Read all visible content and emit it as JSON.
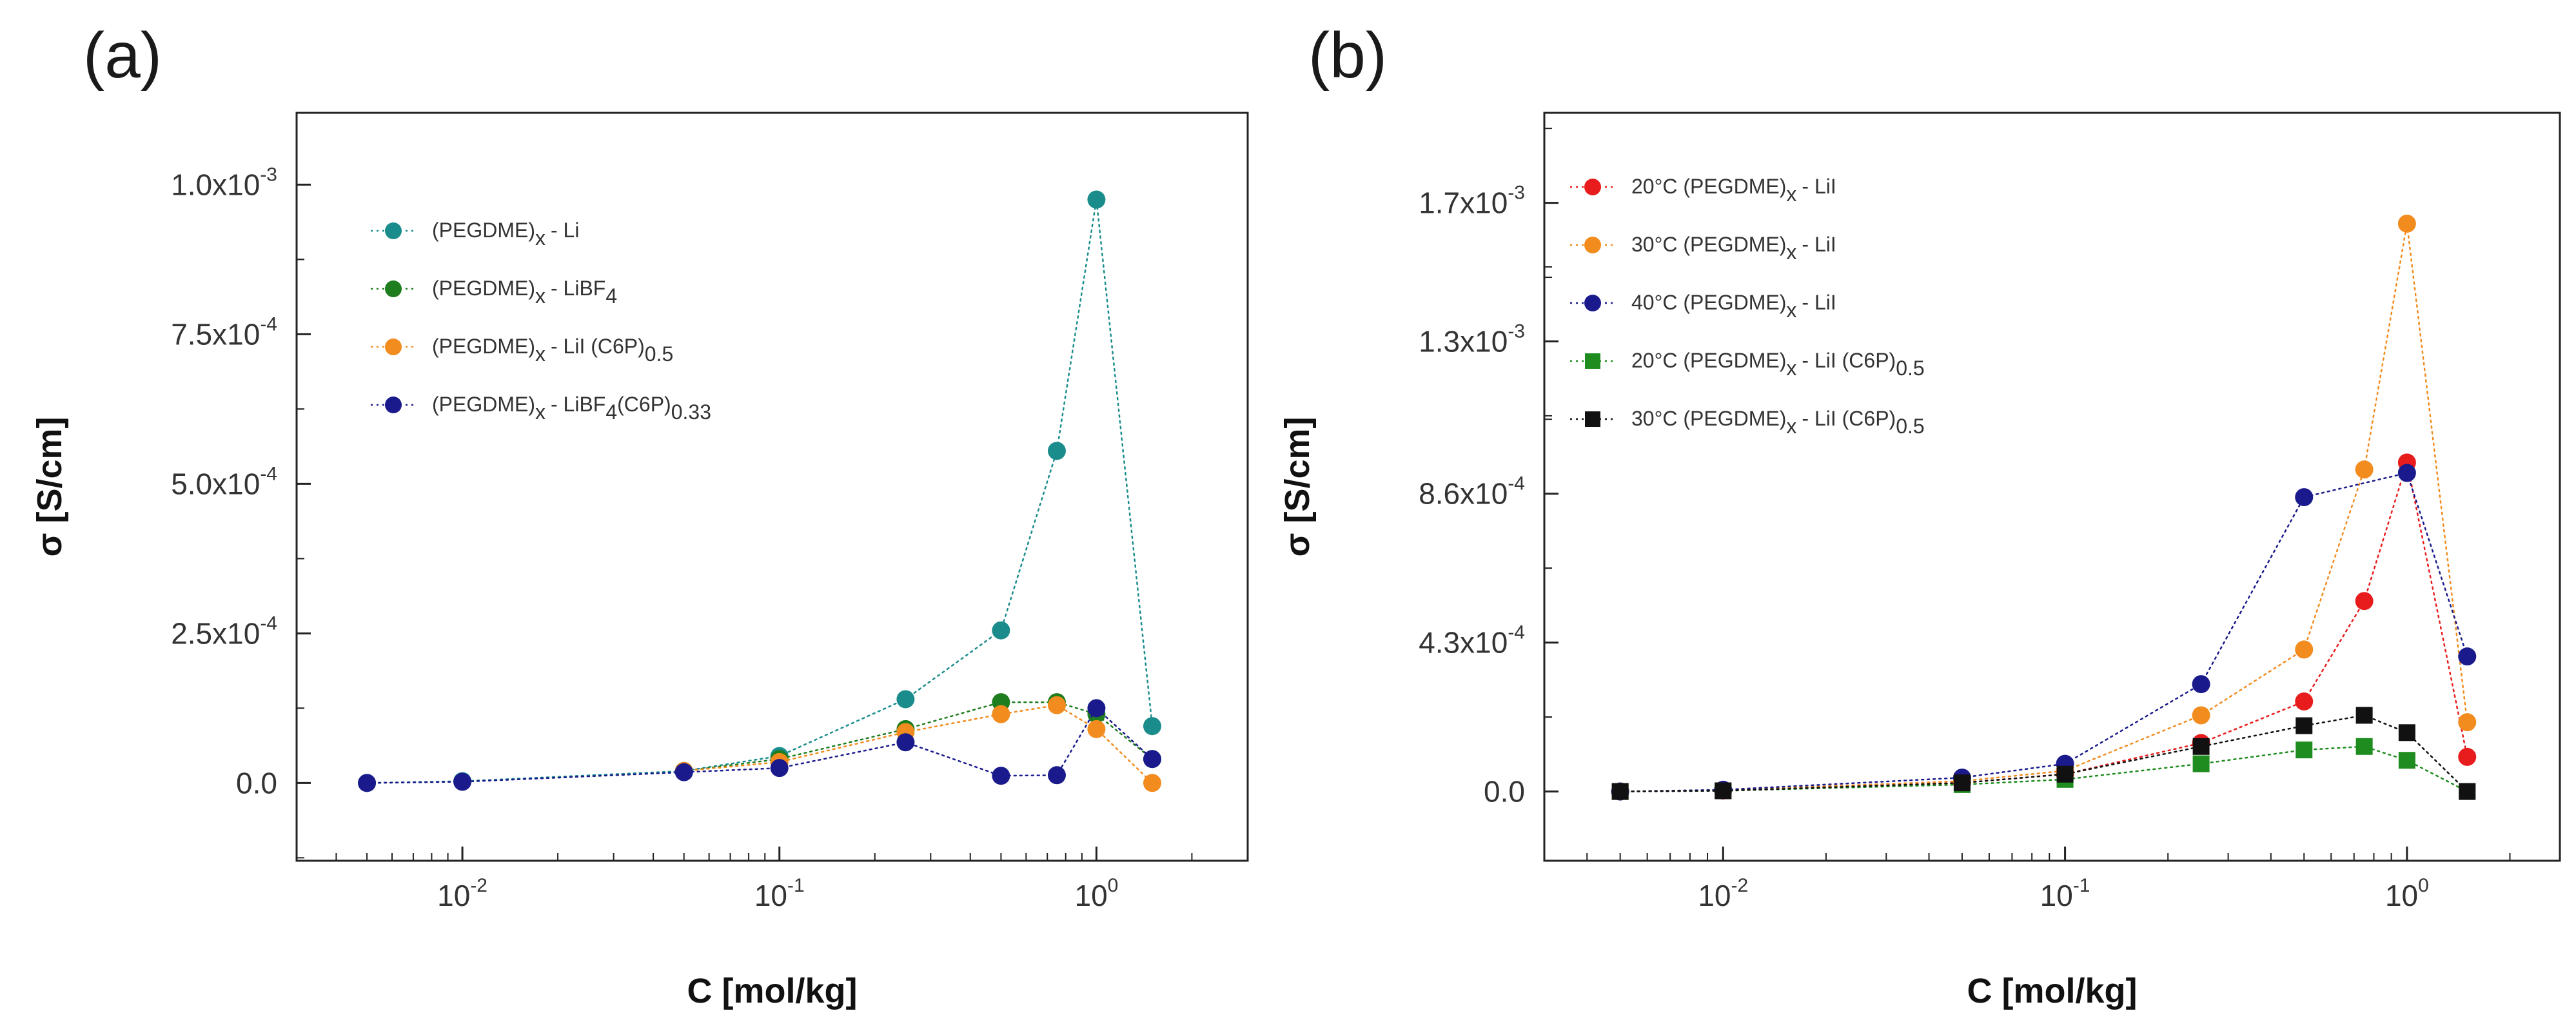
{
  "chart_data": [
    {
      "type": "scatter",
      "panel_label": "(a)",
      "xlabel": "C [mol/kg]",
      "ylabel": "σ [S/cm]",
      "xscale": "log",
      "xlim": [
        0.003,
        3.0
      ],
      "ylim": [
        -0.00013,
        0.00112
      ],
      "xticks": [
        {
          "base": "10",
          "exp": "-2",
          "value": 0.01
        },
        {
          "base": "10",
          "exp": "-1",
          "value": 0.1
        },
        {
          "base": "10",
          "exp": "0",
          "value": 1.0
        }
      ],
      "yticks": [
        {
          "label": "0.0",
          "value": 0.0
        },
        {
          "label": "2.5x10",
          "exp": "-4",
          "value": 0.00025
        },
        {
          "label": "5.0x10",
          "exp": "-4",
          "value": 0.0005
        },
        {
          "label": "7.5x10",
          "exp": "-4",
          "value": 0.00075
        },
        {
          "label": "1.0x10",
          "exp": "-3",
          "value": 0.001
        }
      ],
      "legend_position": "upper-left",
      "series": [
        {
          "name": "(PEGDME)",
          "sub": "x",
          "suffix": "- Li",
          "suffix_sub": "",
          "color": "#1a8c8c",
          "marker": "circle",
          "x": [
            0.005,
            0.01,
            0.05,
            0.1,
            0.25,
            0.5,
            0.75,
            1.0,
            1.5
          ],
          "y": [
            0.0,
            3e-06,
            2e-05,
            4.5e-05,
            0.00014,
            0.000255,
            0.000555,
            0.000975,
            9.5e-05
          ]
        },
        {
          "name": "(PEGDME)",
          "sub": "x",
          "suffix": "- LiBF",
          "suffix_sub": "4",
          "color": "#1e7d1e",
          "marker": "circle",
          "x": [
            0.05,
            0.1,
            0.25,
            0.5,
            0.75,
            1.0,
            1.5
          ],
          "y": [
            2e-05,
            4e-05,
            9e-05,
            0.000135,
            0.000135,
            0.000115,
            4e-05
          ]
        },
        {
          "name": "(PEGDME)",
          "sub": "x",
          "suffix": "- LiI (C6P)",
          "suffix_sub": "0.5",
          "color": "#f28c1e",
          "marker": "circle",
          "x": [
            0.05,
            0.1,
            0.25,
            0.5,
            0.75,
            1.0,
            1.5
          ],
          "y": [
            2e-05,
            3.5e-05,
            8.5e-05,
            0.000115,
            0.00013,
            9e-05,
            0.0
          ]
        },
        {
          "name": "(PEGDME)",
          "sub": "x",
          "suffix": "- LiBF",
          "suffix_sub": "4",
          "suffix2": "(C6P)",
          "suffix2_sub": "0.33",
          "color": "#1a1a8c",
          "marker": "circle",
          "x": [
            0.005,
            0.01,
            0.05,
            0.1,
            0.25,
            0.5,
            0.75,
            1.0,
            1.5
          ],
          "y": [
            0.0,
            2e-06,
            1.8e-05,
            2.5e-05,
            6.8e-05,
            1.2e-05,
            1.3e-05,
            0.000125,
            4e-05
          ]
        }
      ]
    },
    {
      "type": "scatter",
      "panel_label": "(b)",
      "xlabel": "C [mol/kg]",
      "ylabel": "σ [S/cm]",
      "xscale": "log",
      "xlim": [
        0.003,
        2.8
      ],
      "ylim": [
        -0.0002,
        0.00196
      ],
      "xticks": [
        {
          "base": "10",
          "exp": "-2",
          "value": 0.01
        },
        {
          "base": "10",
          "exp": "-1",
          "value": 0.1
        },
        {
          "base": "10",
          "exp": "0",
          "value": 1.0
        }
      ],
      "yticks": [
        {
          "label": "0.0",
          "value": 0.0
        },
        {
          "label": "4.3x10",
          "exp": "-4",
          "value": 0.00043
        },
        {
          "label": "8.6x10",
          "exp": "-4",
          "value": 0.00086
        },
        {
          "label": "1.3x10",
          "exp": "-3",
          "value": 0.0013
        },
        {
          "label": "1.7x10",
          "exp": "-3",
          "value": 0.0017
        }
      ],
      "legend_position": "upper-left",
      "series": [
        {
          "name": "20°C (PEGDME)",
          "sub": "x",
          "suffix": "- LiI",
          "suffix_sub": "",
          "color": "#e81c1c",
          "marker": "circle",
          "x": [
            0.005,
            0.01,
            0.05,
            0.1,
            0.25,
            0.5,
            0.75,
            1.0,
            1.5
          ],
          "y": [
            0.0,
            3e-06,
            2.5e-05,
            5e-05,
            0.00014,
            0.00026,
            0.00055,
            0.00095,
            0.0001
          ]
        },
        {
          "name": "30°C (PEGDME)",
          "sub": "x",
          "suffix": "- LiI",
          "suffix_sub": "",
          "color": "#f28c1e",
          "marker": "circle",
          "x": [
            0.005,
            0.01,
            0.05,
            0.1,
            0.25,
            0.5,
            0.75,
            1.0,
            1.5
          ],
          "y": [
            0.0,
            4e-06,
            3e-05,
            6e-05,
            0.00022,
            0.00041,
            0.00093,
            0.00164,
            0.0002
          ]
        },
        {
          "name": "40°C (PEGDME)",
          "sub": "x",
          "suffix": "- LiI",
          "suffix_sub": "",
          "color": "#1a1a8c",
          "marker": "circle",
          "x": [
            0.005,
            0.01,
            0.05,
            0.1,
            0.25,
            0.5,
            0.75,
            1.0,
            1.5
          ],
          "y": [
            0.0,
            5e-06,
            4e-05,
            8e-05,
            0.00031,
            0.00085,
            null,
            0.00092,
            0.00039
          ]
        },
        {
          "name": "20°C (PEGDME)",
          "sub": "x",
          "suffix": "- LiI (C6P)",
          "suffix_sub": "0.5",
          "color": "#1e8c1e",
          "marker": "square",
          "x": [
            0.005,
            0.01,
            0.05,
            0.1,
            0.25,
            0.5,
            0.75,
            1.0,
            1.5
          ],
          "y": [
            0.0,
            2e-06,
            2e-05,
            3.5e-05,
            8e-05,
            0.00012,
            0.00013,
            9e-05,
            0.0
          ]
        },
        {
          "name": "30°C (PEGDME)",
          "sub": "x",
          "suffix": "- LiI (C6P)",
          "suffix_sub": "0.5",
          "color": "#111111",
          "marker": "square",
          "x": [
            0.005,
            0.01,
            0.05,
            0.1,
            0.25,
            0.5,
            0.75,
            1.0,
            1.5
          ],
          "y": [
            0.0,
            2e-06,
            2.5e-05,
            5e-05,
            0.00013,
            0.00019,
            0.00022,
            0.00017,
            0.0
          ]
        }
      ]
    }
  ]
}
